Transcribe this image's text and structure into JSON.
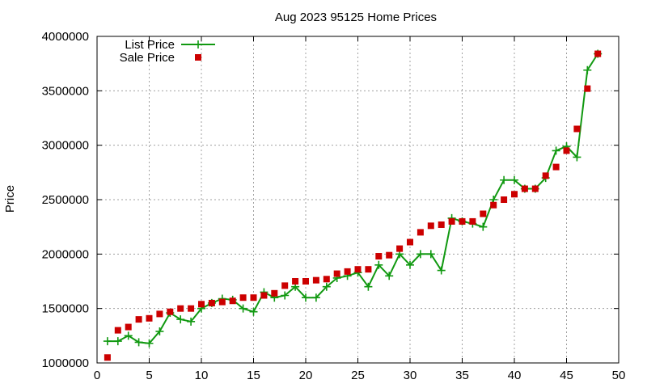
{
  "chart_data": {
    "type": "line",
    "title": "Aug 2023 95125 Home Prices",
    "xlabel": "",
    "ylabel": "Price",
    "xlim": [
      0,
      50
    ],
    "ylim": [
      1000000,
      4000000
    ],
    "xticks": [
      "0",
      "5",
      "10",
      "15",
      "20",
      "25",
      "30",
      "35",
      "40",
      "45",
      "50"
    ],
    "yticks": [
      "1000000",
      "1500000",
      "2000000",
      "2500000",
      "3000000",
      "3500000",
      "4000000"
    ],
    "grid": true,
    "legend_position": "top-left",
    "series": [
      {
        "name": "List Price",
        "style": "line+cross",
        "color": "#119911",
        "x": [
          1,
          2,
          3,
          4,
          5,
          6,
          7,
          8,
          9,
          10,
          11,
          12,
          13,
          14,
          15,
          16,
          17,
          18,
          19,
          20,
          21,
          22,
          23,
          24,
          25,
          26,
          27,
          28,
          29,
          30,
          31,
          32,
          33,
          34,
          35,
          36,
          37,
          38,
          39,
          40,
          41,
          42,
          43,
          44,
          45,
          46,
          47,
          48
        ],
        "y": [
          1200000,
          1200000,
          1250000,
          1190000,
          1180000,
          1290000,
          1460000,
          1400000,
          1380000,
          1500000,
          1550000,
          1590000,
          1580000,
          1500000,
          1470000,
          1650000,
          1600000,
          1620000,
          1700000,
          1600000,
          1600000,
          1700000,
          1780000,
          1800000,
          1830000,
          1700000,
          1900000,
          1800000,
          2000000,
          1900000,
          2000000,
          2000000,
          1850000,
          2330000,
          2300000,
          2280000,
          2250000,
          2500000,
          2680000,
          2680000,
          2600000,
          2600000,
          2700000,
          2950000,
          2990000,
          2890000,
          3690000,
          3840000
        ]
      },
      {
        "name": "Sale Price",
        "style": "square",
        "color": "#cc0000",
        "x": [
          1,
          2,
          3,
          4,
          5,
          6,
          7,
          8,
          9,
          10,
          11,
          12,
          13,
          14,
          15,
          16,
          17,
          18,
          19,
          20,
          21,
          22,
          23,
          24,
          25,
          26,
          27,
          28,
          29,
          30,
          31,
          32,
          33,
          34,
          35,
          36,
          37,
          38,
          39,
          40,
          41,
          42,
          43,
          44,
          45,
          46,
          47,
          48
        ],
        "y": [
          1050000,
          1300000,
          1330000,
          1400000,
          1410000,
          1450000,
          1470000,
          1500000,
          1500000,
          1540000,
          1550000,
          1560000,
          1570000,
          1600000,
          1600000,
          1620000,
          1640000,
          1710000,
          1750000,
          1750000,
          1760000,
          1770000,
          1820000,
          1840000,
          1860000,
          1860000,
          1980000,
          1990000,
          2050000,
          2110000,
          2200000,
          2260000,
          2270000,
          2300000,
          2300000,
          2300000,
          2370000,
          2450000,
          2500000,
          2550000,
          2600000,
          2600000,
          2720000,
          2800000,
          2950000,
          3150000,
          3520000,
          3840000
        ]
      }
    ]
  }
}
